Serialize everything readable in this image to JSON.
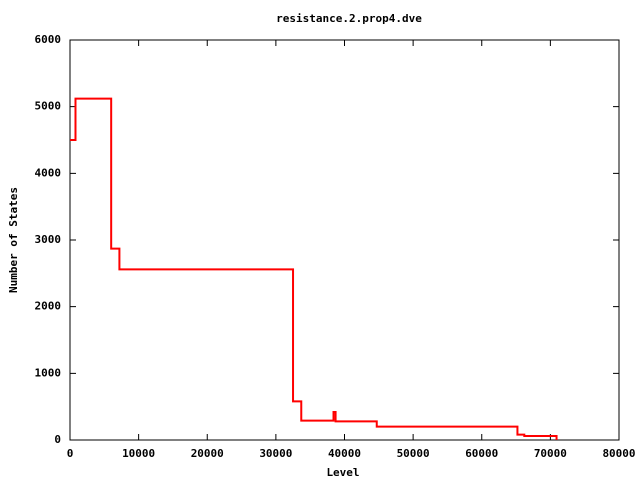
{
  "chart_data": {
    "type": "line",
    "title": "resistance.2.prop4.dve",
    "xlabel": "Level",
    "ylabel": "Number of States",
    "x": [
      0,
      800,
      800,
      6000,
      6000,
      7200,
      7200,
      32500,
      32500,
      33700,
      33700,
      38400,
      38400,
      38700,
      38700,
      44700,
      44700,
      65200,
      65200,
      66200,
      66200,
      70900,
      70900
    ],
    "series": [
      {
        "color": "#ff0000",
        "values": [
          4500,
          4500,
          5120,
          5120,
          2870,
          2870,
          2560,
          2560,
          580,
          580,
          290,
          290,
          420,
          420,
          280,
          280,
          200,
          200,
          80,
          80,
          60,
          60,
          0
        ]
      }
    ],
    "xlim": [
      0,
      80000
    ],
    "xticks": [
      0,
      10000,
      20000,
      30000,
      40000,
      50000,
      60000,
      70000,
      80000
    ],
    "ylim": [
      0,
      6000
    ],
    "yticks": [
      0,
      1000,
      2000,
      3000,
      4000,
      5000,
      6000
    ]
  }
}
